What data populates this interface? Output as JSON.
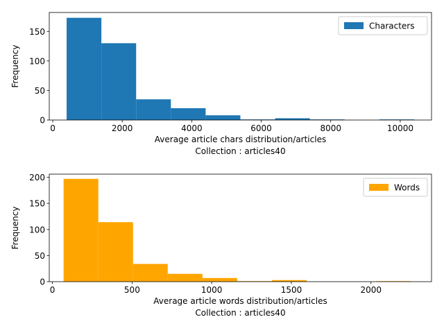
{
  "chart_data": [
    {
      "type": "bar",
      "subtype": "histogram",
      "title": "",
      "xlabel": "Average article chars distribution/articles",
      "xlabel_line2": "Collection : articles40",
      "ylabel": "Frequency",
      "xlim": [
        -100,
        10900
      ],
      "ylim": [
        0,
        182
      ],
      "xticks": [
        0,
        2000,
        4000,
        6000,
        8000,
        10000
      ],
      "yticks": [
        0,
        50,
        100,
        150
      ],
      "grid": false,
      "legend_position": "upper-right",
      "color": "#1f77b4",
      "series": [
        {
          "name": "Characters"
        }
      ],
      "bins": [
        {
          "x0": 400,
          "x1": 1400,
          "count": 173
        },
        {
          "x0": 1400,
          "x1": 2400,
          "count": 130
        },
        {
          "x0": 2400,
          "x1": 3400,
          "count": 35
        },
        {
          "x0": 3400,
          "x1": 4400,
          "count": 20
        },
        {
          "x0": 4400,
          "x1": 5400,
          "count": 8
        },
        {
          "x0": 5400,
          "x1": 6400,
          "count": 1
        },
        {
          "x0": 6400,
          "x1": 7400,
          "count": 3
        },
        {
          "x0": 7400,
          "x1": 8400,
          "count": 1
        },
        {
          "x0": 8400,
          "x1": 9400,
          "count": 0
        },
        {
          "x0": 9400,
          "x1": 10400,
          "count": 1
        }
      ]
    },
    {
      "type": "bar",
      "subtype": "histogram",
      "title": "",
      "xlabel": "Average article words distribution/articles",
      "xlabel_line2": "Collection : articles40",
      "ylabel": "Frequency",
      "xlim": [
        -20,
        2380
      ],
      "ylim": [
        0,
        206
      ],
      "xticks": [
        0,
        500,
        1000,
        1500,
        2000
      ],
      "yticks": [
        0,
        50,
        100,
        150,
        200
      ],
      "grid": false,
      "legend_position": "upper-right",
      "color": "#ffa500",
      "series": [
        {
          "name": "Words"
        }
      ],
      "bins": [
        {
          "x0": 70,
          "x1": 288,
          "count": 197
        },
        {
          "x0": 288,
          "x1": 506,
          "count": 114
        },
        {
          "x0": 506,
          "x1": 724,
          "count": 34
        },
        {
          "x0": 724,
          "x1": 942,
          "count": 15
        },
        {
          "x0": 942,
          "x1": 1160,
          "count": 7
        },
        {
          "x0": 1160,
          "x1": 1378,
          "count": 1
        },
        {
          "x0": 1378,
          "x1": 1596,
          "count": 3
        },
        {
          "x0": 1596,
          "x1": 1814,
          "count": 0
        },
        {
          "x0": 1814,
          "x1": 2032,
          "count": 0
        },
        {
          "x0": 2032,
          "x1": 2250,
          "count": 1
        }
      ]
    }
  ]
}
